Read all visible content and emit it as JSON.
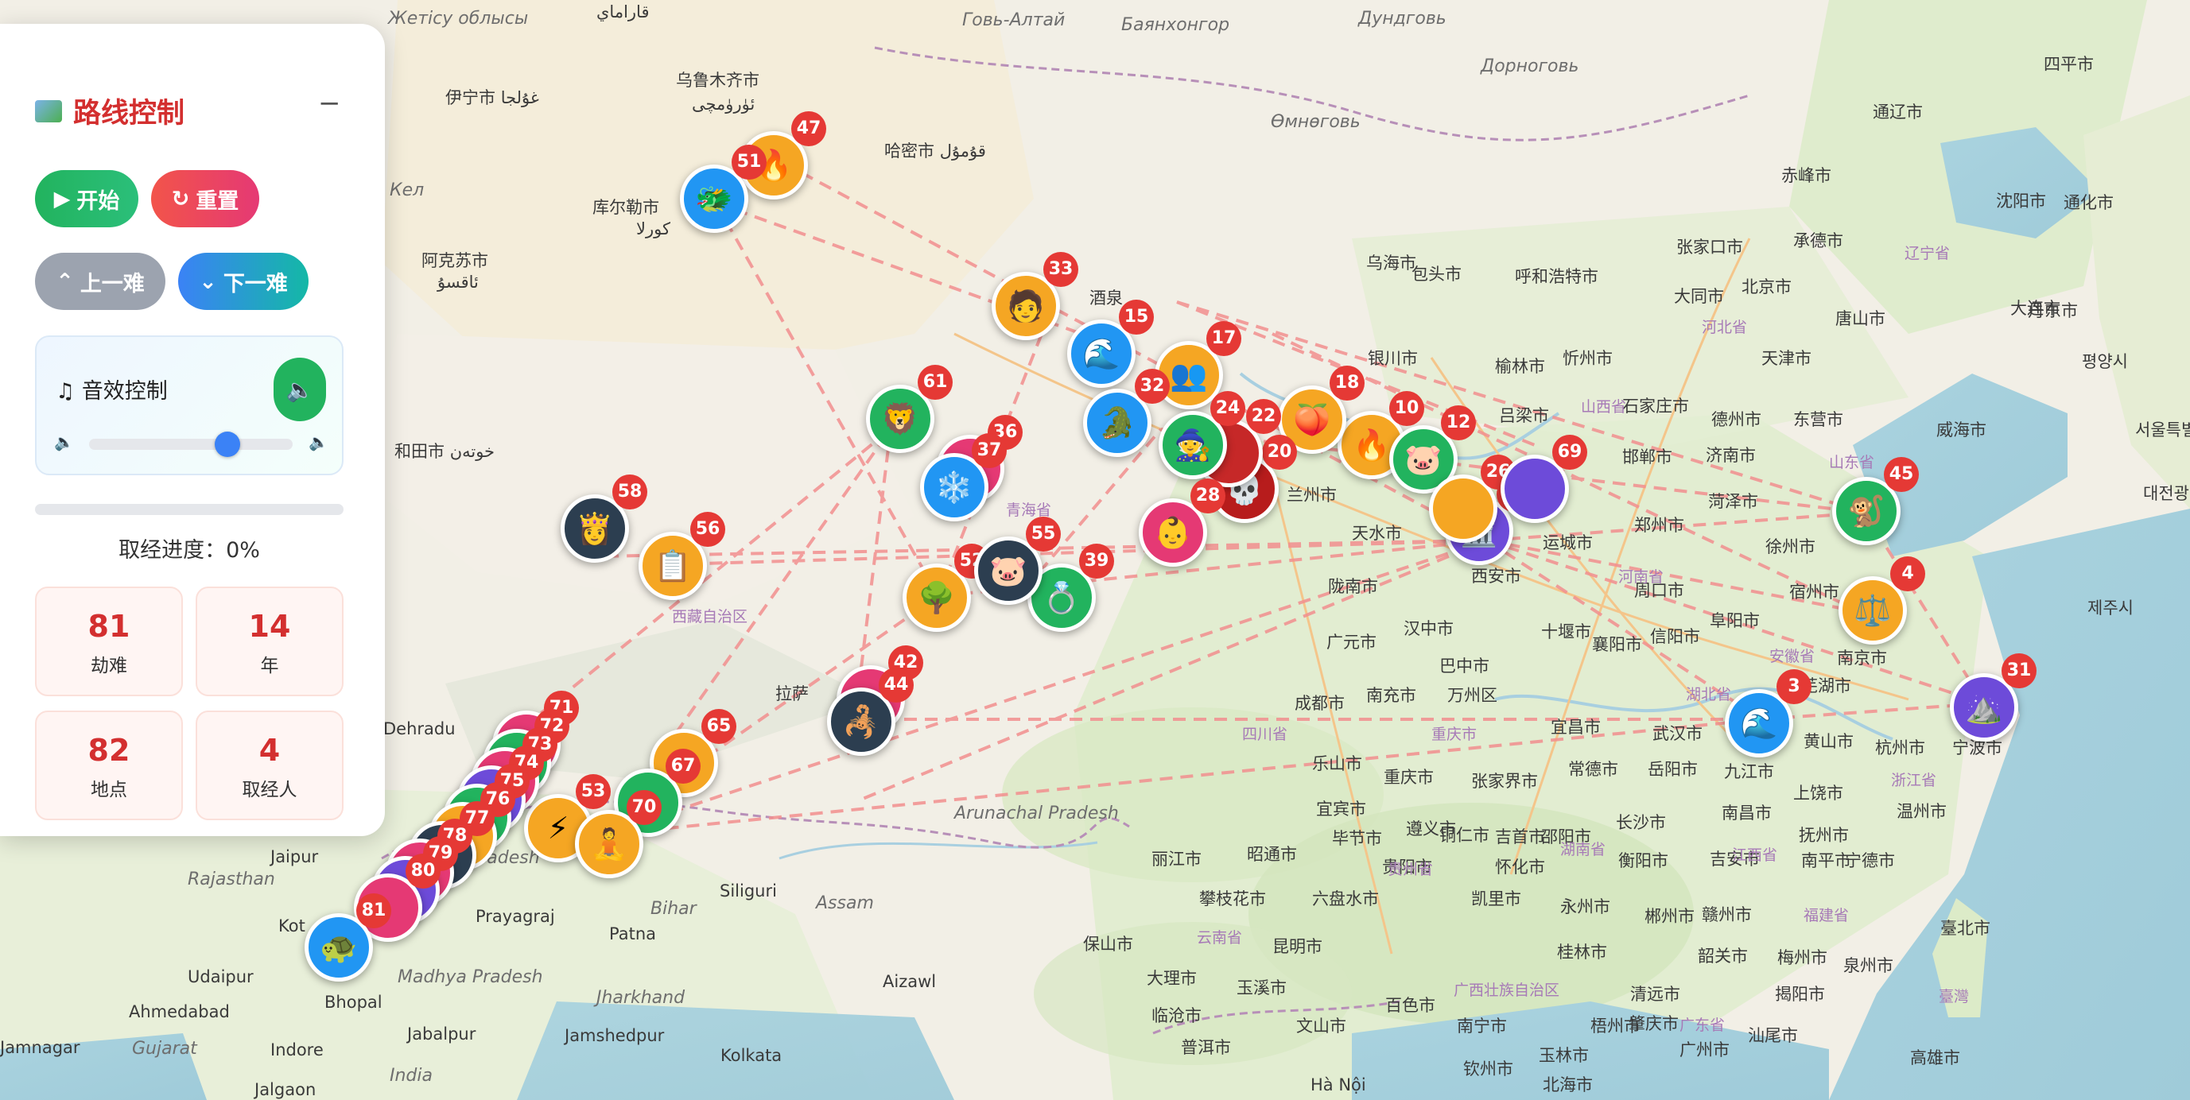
{
  "panel": {
    "title": "路线控制",
    "minimize": "−",
    "start_label": "开始",
    "reset_label": "重置",
    "prev_label": "上一难",
    "next_label": "下一难",
    "sound_label": "音效控制",
    "volume": 0.68,
    "progress_label": "取经进度：0%",
    "progress": 0,
    "stats": [
      {
        "value": "81",
        "label": "劫难"
      },
      {
        "value": "14",
        "label": "年"
      },
      {
        "value": "82",
        "label": "地点"
      },
      {
        "value": "4",
        "label": "取经人"
      }
    ]
  },
  "map_labels": {
    "urumqi": "乌鲁木齐市",
    "urumqi_ug": "ئۈرۈمچی",
    "karamay": "قاراماي",
    "yining": "伊宁市 غۇلجا",
    "korla": "库尔勒市",
    "korla_ug": "كورلا",
    "aksu": "阿克苏市",
    "aksu_ug": "ئاقسۇ",
    "hami": "哈密市 قۇمۇل",
    "hotan": "和田市 خوتەن",
    "jiuquan": "酒泉",
    "yinchuan": "银川市",
    "lanzhou": "兰州市",
    "xian": "西安市",
    "tianshui": "天水市",
    "longnan": "陇南市",
    "guangyuan": "广元市",
    "hanzhong": "汉中市",
    "bazhong": "巴中市",
    "nanchong": "南充市",
    "chengdu": "成都市",
    "leshan": "乐山市",
    "chongqing": "重庆市",
    "wanzhou": "万州区",
    "yibin": "宜宾市",
    "zhangjiajie": "张家界市",
    "yichang": "宜昌市",
    "changde": "常德市",
    "yueyang": "岳阳市",
    "wuhan": "武汉市",
    "jiujiang": "九江市",
    "nanchang": "南昌市",
    "shangrao": "上饶市",
    "hangzhou": "杭州市",
    "ningbo": "宁波市",
    "wenzhou": "温州市",
    "nanjing": "南京市",
    "wuhu": "芜湖市",
    "huangshan": "黄山市",
    "suzhou": "宿州市",
    "xuzhou": "徐州市",
    "fuyang": "阜阳市",
    "zhoukou": "周口市",
    "zhengzhou": "郑州市",
    "handan": "邯郸市",
    "shijiazhuang": "石家庄市",
    "beijing": "北京市",
    "tianjin": "天津市",
    "tangshan": "唐山市",
    "baotou": "包头市",
    "hohhot": "呼和浩特市",
    "datong": "大同市",
    "wuhai": "乌海市",
    "yulin": "榆林市",
    "xinzhou": "忻州市",
    "lvliang": "吕梁市",
    "yuncheng": "运城市",
    "shiyan": "十堰市",
    "xiangyang": "襄阳市",
    "xinyang": "信阳市",
    "jinan": "济南市",
    "dezhou": "德州市",
    "dongying": "东营市",
    "weihai": "威海市",
    "heze": "菏泽市",
    "dalian": "大连市",
    "shenyang": "沈阳市",
    "chifeng": "赤峰市",
    "chengde": "承德市",
    "zhangjiakou": "张家口市",
    "tongliao": "通辽市",
    "siping": "四平市",
    "tonghua": "通化市",
    "dandong": "丹东市",
    "pyongyang": "평양시",
    "seoul": "서울특별시",
    "daejeon": "대전광역시",
    "jeju": "제주시",
    "kunming": "昆明市",
    "guiyang": "贵阳市",
    "zunyi": "遵义市",
    "kaili": "凯里市",
    "liupanshui": "六盘水市",
    "bijie": "毕节市",
    "lijiang": "丽江市",
    "panzhihua": "攀枝花市",
    "zhaotong": "昭通市",
    "baoshan": "保山市",
    "dali": "大理市",
    "yuxi": "玉溪市",
    "wenshan": "文山市",
    "baise": "百色市",
    "nanning": "南宁市",
    "qinzhou": "钦州市",
    "yulin_gx": "玉林市",
    "wuzhou": "梧州市",
    "guilin": "桂林市",
    "zhaoqing": "肇庆市",
    "guangzhou": "广州市",
    "qingyuan": "清远市",
    "shaoguan": "韶关市",
    "meizhou": "梅州市",
    "chenzhou": "郴州市",
    "hengyang": "衡阳市",
    "changsha": "长沙市",
    "jian": "吉安市",
    "ganzhou": "赣州市",
    "fuzhou_jx": "抚州市",
    "nanping": "南平市",
    "ningde": "宁德市",
    "quanzhou": "泉州市",
    "jieyang": "揭阳市",
    "shantou": "汕尾市",
    "yongzhou": "永州市",
    "shaoyang": "邵阳市",
    "jishou": "吉首市",
    "tongren": "铜仁市",
    "huaihua": "怀化市",
    "taibei": "臺北市",
    "kaohsiung": "高雄市",
    "hanoi": "Hà Nội",
    "haikou": "北海市",
    "puer": "普洱市",
    "lincang": "临沧市",
    "lasa": "拉萨",
    "jaipur": "Jaipur",
    "prayagraj": "Prayagraj",
    "patna": "Patna",
    "siliguri": "Siliguri",
    "kota": "Kot",
    "udaipur": "Udaipur",
    "ahmedabad": "Ahmedabad",
    "indore": "Indore",
    "bhopal": "Bhopal",
    "jabalpur": "Jabalpur",
    "jamshedpur": "Jamshedpur",
    "kolkata": "Kolkata",
    "aizawl": "Aizawl",
    "jalgaon": "Jalgaon",
    "jamnagar": "Jamnagar",
    "dehradun": "Dehradu",
    "india": "India",
    "bihar": "Bihar",
    "assam": "Assam",
    "arunachal": "Arunachal Pradesh",
    "jharkhand": "Jharkhand",
    "madhya": "Madhya Pradesh",
    "gujarat": "Gujarat",
    "rajasthan": "Rajasthan",
    "pradesh": "Pradesh",
    "qinghai": "青海省",
    "xizang": "西藏自治区",
    "sichuan": "四川省",
    "hubei": "湖北省",
    "henan": "河南省",
    "anhui": "安徽省",
    "shandong": "山东省",
    "shanxi": "山西省",
    "hebei": "河北省",
    "zhejiang": "浙江省",
    "jiangxi": "江西省",
    "hunan": "湖南省",
    "guizhou": "贵州省",
    "yunnan": "云南省",
    "guangxi": "广西壮族自治区",
    "guangdong": "广东省",
    "fujian": "福建省",
    "liaoning": "辽宁省",
    "chongqing_prov": "重庆市",
    "taiwan": "臺灣",
    "gobi": "Говь-Алтай",
    "bayan": "Баянхонгор",
    "dundgovi": "Дундговь",
    "dornogovi": "Дорноговь",
    "omnogovi": "Өмнөговь",
    "zhetisu": "Жетісу облысы",
    "kel": "Кел"
  },
  "markers": [
    {
      "n": "1",
      "icon": "🏛️",
      "color": "#6d4bd9"
    },
    {
      "n": "3",
      "icon": "🌊",
      "color": "#2196f3"
    },
    {
      "n": "4",
      "icon": "⚖️",
      "color": "#f5a623"
    },
    {
      "n": "10",
      "icon": "🔥",
      "color": "#f5a623"
    },
    {
      "n": "12",
      "icon": "🐷",
      "color": "#22b35e"
    },
    {
      "n": "15",
      "icon": "🌊",
      "color": "#2196f3"
    },
    {
      "n": "17",
      "icon": "👥",
      "color": "#f5a623"
    },
    {
      "n": "18",
      "icon": "🍑",
      "color": "#f5a623"
    },
    {
      "n": "20",
      "icon": "💀",
      "color": "#b71c1c"
    },
    {
      "n": "22",
      "icon": "",
      "color": "#c62828"
    },
    {
      "n": "24",
      "icon": "🧙",
      "color": "#22b35e"
    },
    {
      "n": "26",
      "icon": "",
      "color": "#f5a623"
    },
    {
      "n": "28",
      "icon": "👶",
      "color": "#e53974"
    },
    {
      "n": "31",
      "icon": "⛰️",
      "color": "#6d4bd9"
    },
    {
      "n": "32",
      "icon": "🐊",
      "color": "#2196f3"
    },
    {
      "n": "33",
      "icon": "🧑",
      "color": "#f5a623"
    },
    {
      "n": "36",
      "icon": "",
      "color": "#e53974"
    },
    {
      "n": "37",
      "icon": "❄️",
      "color": "#2196f3"
    },
    {
      "n": "39",
      "icon": "💍",
      "color": "#22b35e"
    },
    {
      "n": "42",
      "icon": "",
      "color": "#e53974"
    },
    {
      "n": "44",
      "icon": "🦂",
      "color": "#2c3e50"
    },
    {
      "n": "45",
      "icon": "🐒",
      "color": "#22b35e"
    },
    {
      "n": "47",
      "icon": "🔥",
      "color": "#f5a623"
    },
    {
      "n": "51",
      "icon": "🐲",
      "color": "#2196f3"
    },
    {
      "n": "52",
      "icon": "🌳",
      "color": "#f5a623"
    },
    {
      "n": "53",
      "icon": "⚡",
      "color": "#f5a623"
    },
    {
      "n": "55",
      "icon": "🐷",
      "color": "#2c3e50"
    },
    {
      "n": "56",
      "icon": "📋",
      "color": "#f5a623"
    },
    {
      "n": "58",
      "icon": "👸",
      "color": "#2c3e50"
    },
    {
      "n": "61",
      "icon": "🦁",
      "color": "#22b35e"
    },
    {
      "n": "65",
      "icon": "",
      "color": "#f5a623"
    },
    {
      "n": "67",
      "icon": "",
      "color": "#22b35e"
    },
    {
      "n": "69",
      "icon": "",
      "color": "#6d4bd9"
    },
    {
      "n": "70",
      "icon": "🧘",
      "color": "#f5a623"
    },
    {
      "n": "71",
      "icon": "",
      "color": "#e53974"
    },
    {
      "n": "72",
      "icon": "",
      "color": "#22b35e"
    },
    {
      "n": "73",
      "icon": "",
      "color": "#e53974"
    },
    {
      "n": "74",
      "icon": "",
      "color": "#6d4bd9"
    },
    {
      "n": "75",
      "icon": "",
      "color": "#22b35e"
    },
    {
      "n": "76",
      "icon": "",
      "color": "#f5a623"
    },
    {
      "n": "77",
      "icon": "",
      "color": "#2c3e50"
    },
    {
      "n": "78",
      "icon": "",
      "color": "#e53974"
    },
    {
      "n": "79",
      "icon": "",
      "color": "#6d4bd9"
    },
    {
      "n": "80",
      "icon": "",
      "color": "#e53974"
    },
    {
      "n": "81",
      "icon": "🐢",
      "color": "#2196f3"
    }
  ]
}
